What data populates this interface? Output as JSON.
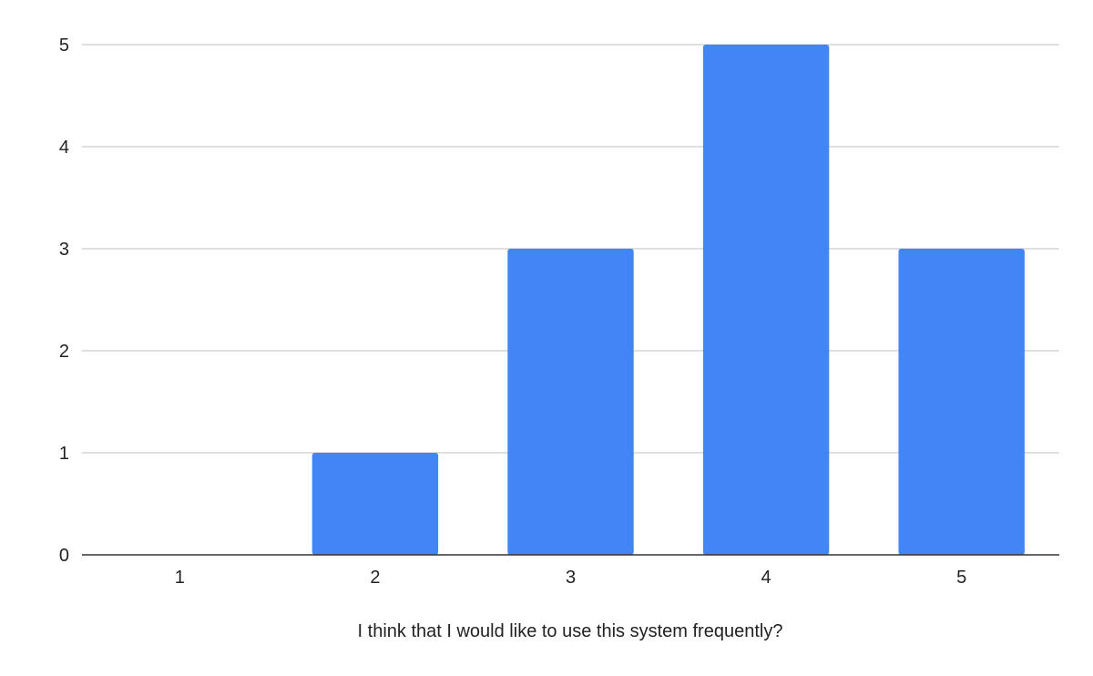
{
  "chart_data": {
    "type": "bar",
    "title": "",
    "xlabel": "I think that I would like to use this system frequently?",
    "ylabel": "",
    "categories": [
      "1",
      "2",
      "3",
      "4",
      "5"
    ],
    "values": [
      0,
      1,
      3,
      5,
      3
    ],
    "ylim": [
      0,
      5
    ],
    "yticks": [
      "0",
      "1",
      "2",
      "3",
      "4",
      "5"
    ],
    "grid": true,
    "legend": "none",
    "colors": {
      "bar": "#4285f4",
      "grid": "#cccccc",
      "axis": "#333333"
    }
  }
}
